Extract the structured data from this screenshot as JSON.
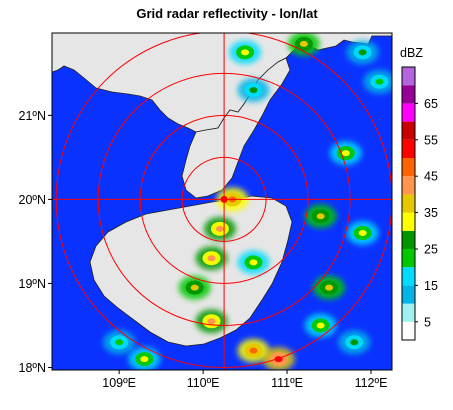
{
  "chart_data": {
    "type": "heatmap",
    "title": "Grid radar reflectivity - lon/lat",
    "xlim": [
      108.2,
      112.25
    ],
    "ylim": [
      17.97,
      21.98
    ],
    "x_ticks": [
      {
        "value": 109,
        "label": "109ºE"
      },
      {
        "value": 110,
        "label": "110ºE"
      },
      {
        "value": 111,
        "label": "111ºE"
      },
      {
        "value": 112,
        "label": "112ºE"
      }
    ],
    "y_ticks": [
      {
        "value": 18,
        "label": "18ºN"
      },
      {
        "value": 19,
        "label": "19ºN"
      },
      {
        "value": 20,
        "label": "20ºN"
      },
      {
        "value": 21,
        "label": "21ºN"
      }
    ],
    "radar_center": {
      "lon": 110.25,
      "lat": 20.0
    },
    "range_rings_deg": [
      0.5,
      1.0,
      1.5,
      2.0
    ],
    "colorbar": {
      "unit": "dBZ",
      "tick_values": [
        5,
        15,
        25,
        35,
        45,
        55,
        65
      ],
      "tick_labels": [
        "5",
        "15",
        "25",
        "35",
        "45",
        "55",
        "65"
      ],
      "bins": [
        0,
        5,
        10,
        15,
        20,
        25,
        30,
        35,
        40,
        45,
        50,
        55,
        60,
        65,
        70,
        75
      ],
      "colors": [
        "#ffffff",
        "#a0f0f0",
        "#00b4e6",
        "#00dcff",
        "#00c800",
        "#009600",
        "#ffff00",
        "#e6c800",
        "#ff9650",
        "#ff6400",
        "#ff0000",
        "#c80000",
        "#ff00ff",
        "#960096",
        "#b464dc"
      ]
    },
    "colors": {
      "no_echo": "#0a32ff",
      "land": "#e6e6e6",
      "rings": "#ff0000",
      "coastline": "#202020"
    },
    "echo_cells": [
      {
        "lon": 110.5,
        "lat": 21.75,
        "dbz": 30
      },
      {
        "lon": 111.2,
        "lat": 21.85,
        "dbz": 35
      },
      {
        "lon": 111.9,
        "lat": 21.75,
        "dbz": 25
      },
      {
        "lon": 112.1,
        "lat": 21.4,
        "dbz": 20
      },
      {
        "lon": 110.6,
        "lat": 21.3,
        "dbz": 25
      },
      {
        "lon": 111.7,
        "lat": 20.55,
        "dbz": 30
      },
      {
        "lon": 111.9,
        "lat": 19.6,
        "dbz": 30
      },
      {
        "lon": 111.4,
        "lat": 19.8,
        "dbz": 35
      },
      {
        "lon": 110.35,
        "lat": 20.0,
        "dbz": 45
      },
      {
        "lon": 110.2,
        "lat": 19.65,
        "dbz": 40
      },
      {
        "lon": 110.1,
        "lat": 19.3,
        "dbz": 40
      },
      {
        "lon": 109.9,
        "lat": 18.95,
        "dbz": 35
      },
      {
        "lon": 110.6,
        "lat": 19.25,
        "dbz": 30
      },
      {
        "lon": 111.5,
        "lat": 18.95,
        "dbz": 35
      },
      {
        "lon": 111.4,
        "lat": 18.5,
        "dbz": 30
      },
      {
        "lon": 110.1,
        "lat": 18.55,
        "dbz": 40
      },
      {
        "lon": 110.6,
        "lat": 18.2,
        "dbz": 45
      },
      {
        "lon": 110.9,
        "lat": 18.1,
        "dbz": 50
      },
      {
        "lon": 109.3,
        "lat": 18.1,
        "dbz": 30
      },
      {
        "lon": 111.8,
        "lat": 18.3,
        "dbz": 25
      },
      {
        "lon": 109.0,
        "lat": 18.3,
        "dbz": 20
      }
    ]
  }
}
